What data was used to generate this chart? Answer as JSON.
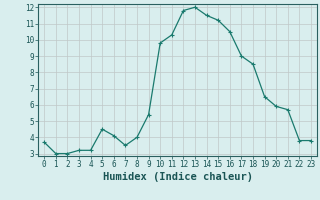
{
  "x": [
    0,
    1,
    2,
    3,
    4,
    5,
    6,
    7,
    8,
    9,
    10,
    11,
    12,
    13,
    14,
    15,
    16,
    17,
    18,
    19,
    20,
    21,
    22,
    23
  ],
  "y": [
    3.7,
    3.0,
    3.0,
    3.2,
    3.2,
    4.5,
    4.1,
    3.5,
    4.0,
    5.4,
    9.8,
    10.3,
    11.8,
    12.0,
    11.5,
    11.2,
    10.5,
    9.0,
    8.5,
    6.5,
    5.9,
    5.7,
    3.8,
    3.8
  ],
  "xlabel": "Humidex (Indice chaleur)",
  "ylim": [
    3,
    12
  ],
  "xlim": [
    -0.5,
    23.5
  ],
  "yticks": [
    3,
    4,
    5,
    6,
    7,
    8,
    9,
    10,
    11,
    12
  ],
  "xticks": [
    0,
    1,
    2,
    3,
    4,
    5,
    6,
    7,
    8,
    9,
    10,
    11,
    12,
    13,
    14,
    15,
    16,
    17,
    18,
    19,
    20,
    21,
    22,
    23
  ],
  "line_color": "#1a7a6e",
  "marker_color": "#1a7a6e",
  "bg_color": "#d9eeee",
  "grid_color": "#c0c8c8",
  "axis_color": "#2a6060",
  "label_color": "#1a5555",
  "tick_fontsize": 5.5,
  "xlabel_fontsize": 7.5
}
